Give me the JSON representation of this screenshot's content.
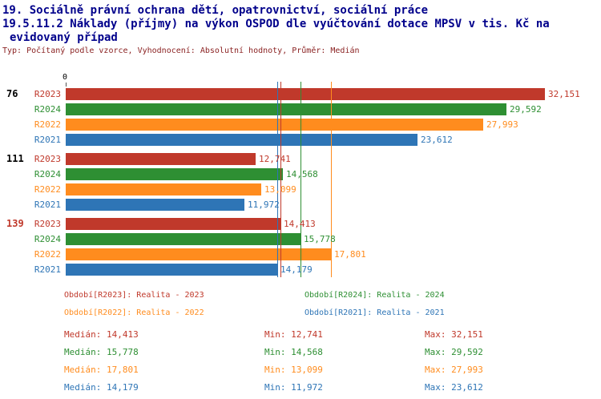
{
  "header": {
    "line1": "19. Sociálně právní ochrana dětí, opatrovnictví, sociální práce",
    "line2": "19.5.11.2 Náklady (příjmy) na výkon OSPOD dle vyúčtování dotace MPSV v tis. Kč na",
    "line3": "evidovaný případ",
    "meta": "Typ: Počítaný podle vzorce, Vyhodnocení: Absolutní hodnoty, Průměr: Medián"
  },
  "chart_data": {
    "type": "bar",
    "orientation": "horizontal",
    "value_unit": "tis. Kč na evidovaný případ",
    "x_axis": {
      "zero_label": "0",
      "max": 32151
    },
    "series_order": [
      "R2023",
      "R2024",
      "R2022",
      "R2021"
    ],
    "series_colors": {
      "R2023": "#c0392b",
      "R2024": "#2e8f33",
      "R2022": "#ff8c1e",
      "R2021": "#2e75b6"
    },
    "groups": [
      {
        "label": "76",
        "label_color": "#000000",
        "bars": [
          {
            "series": "R2023",
            "value": 32151,
            "value_label": "32,151"
          },
          {
            "series": "R2024",
            "value": 29592,
            "value_label": "29,592"
          },
          {
            "series": "R2022",
            "value": 27993,
            "value_label": "27,993"
          },
          {
            "series": "R2021",
            "value": 23612,
            "value_label": "23,612"
          }
        ]
      },
      {
        "label": "111",
        "label_color": "#000000",
        "bars": [
          {
            "series": "R2023",
            "value": 12741,
            "value_label": "12,741"
          },
          {
            "series": "R2024",
            "value": 14568,
            "value_label": "14,568"
          },
          {
            "series": "R2022",
            "value": 13099,
            "value_label": "13,099"
          },
          {
            "series": "R2021",
            "value": 11972,
            "value_label": "11,972"
          }
        ]
      },
      {
        "label": "139",
        "label_color": "#c0392b",
        "bars": [
          {
            "series": "R2023",
            "value": 14413,
            "value_label": "14,413"
          },
          {
            "series": "R2024",
            "value": 15778,
            "value_label": "15,778"
          },
          {
            "series": "R2022",
            "value": 17801,
            "value_label": "17,801"
          },
          {
            "series": "R2021",
            "value": 14179,
            "value_label": "14,179"
          }
        ]
      }
    ],
    "median_lines": [
      {
        "series": "R2021",
        "value": 14179
      },
      {
        "series": "R2023",
        "value": 14413
      },
      {
        "series": "R2024",
        "value": 15778
      },
      {
        "series": "R2022",
        "value": 17801
      }
    ]
  },
  "legend": [
    {
      "series": "R2023",
      "text": "Období[R2023]: Realita - 2023"
    },
    {
      "series": "R2024",
      "text": "Období[R2024]: Realita - 2024"
    },
    {
      "series": "R2022",
      "text": "Období[R2022]: Realita - 2022"
    },
    {
      "series": "R2021",
      "text": "Období[R2021]: Realita - 2021"
    }
  ],
  "stats": [
    {
      "series": "R2023",
      "median": "Medián: 14,413",
      "min": "Min: 12,741",
      "max": "Max: 32,151"
    },
    {
      "series": "R2024",
      "median": "Medián: 15,778",
      "min": "Min: 14,568",
      "max": "Max: 29,592"
    },
    {
      "series": "R2022",
      "median": "Medián: 17,801",
      "min": "Min: 13,099",
      "max": "Max: 27,993"
    },
    {
      "series": "R2021",
      "median": "Medián: 14,179",
      "min": "Min: 11,972",
      "max": "Max: 23,612"
    }
  ]
}
